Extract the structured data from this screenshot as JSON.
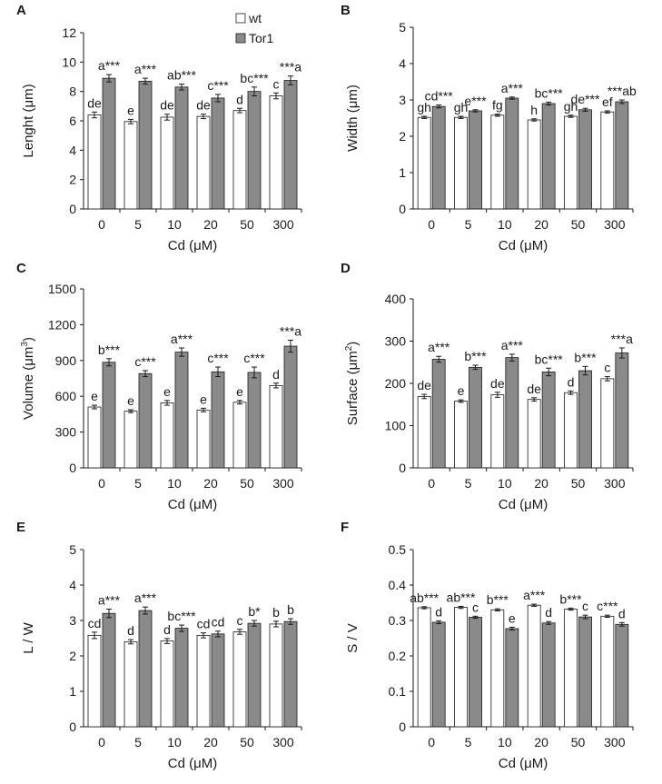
{
  "colors": {
    "wt": "#ffffff",
    "tor1": "#8a8a8a",
    "axis": "#1a1a1a"
  },
  "legend": {
    "wt": "wt",
    "tor1": "Tor1"
  },
  "chart_data": [
    {
      "panel": "A",
      "type": "bar",
      "xlabel": "Cd (μM)",
      "ylabel": "Lenght (μm)",
      "ylim": [
        0,
        12
      ],
      "yticks": [
        0,
        2,
        4,
        6,
        8,
        10,
        12
      ],
      "yticklabels": [
        "0",
        "2",
        "4",
        "6",
        "8",
        "10",
        "12"
      ],
      "categories": [
        "0",
        "5",
        "10",
        "20",
        "50",
        "300"
      ],
      "series": [
        {
          "name": "wt",
          "values": [
            6.4,
            5.95,
            6.25,
            6.3,
            6.7,
            7.7
          ],
          "errors": [
            0.2,
            0.15,
            0.2,
            0.15,
            0.15,
            0.2
          ],
          "labels": [
            "de",
            "e",
            "de",
            "de",
            "d",
            "c"
          ]
        },
        {
          "name": "Tor1",
          "values": [
            8.9,
            8.7,
            8.3,
            7.55,
            8.0,
            8.75
          ],
          "errors": [
            0.25,
            0.2,
            0.2,
            0.25,
            0.3,
            0.3
          ],
          "labels": [
            "a***",
            "a***",
            "ab***",
            "c***",
            "bc***",
            "***a"
          ]
        }
      ]
    },
    {
      "panel": "B",
      "type": "bar",
      "xlabel": "Cd (μM)",
      "ylabel": "Width (μm)",
      "ylim": [
        0,
        5
      ],
      "yticks": [
        0,
        1,
        2,
        3,
        4,
        5
      ],
      "yticklabels": [
        "0",
        "1",
        "2",
        "3",
        "4",
        "5"
      ],
      "categories": [
        "0",
        "5",
        "10",
        "20",
        "50",
        "300"
      ],
      "series": [
        {
          "name": "wt",
          "values": [
            2.52,
            2.52,
            2.58,
            2.45,
            2.55,
            2.67
          ],
          "errors": [
            0.03,
            0.03,
            0.03,
            0.03,
            0.03,
            0.03
          ],
          "labels": [
            "gh",
            "gh",
            "fg",
            "h",
            "gh",
            "ef"
          ]
        },
        {
          "name": "Tor1",
          "values": [
            2.82,
            2.7,
            3.05,
            2.9,
            2.73,
            2.95
          ],
          "errors": [
            0.04,
            0.03,
            0.03,
            0.04,
            0.04,
            0.05
          ],
          "labels": [
            "cd***",
            "e***",
            "a***",
            "bc***",
            "de***",
            "***ab"
          ]
        }
      ]
    },
    {
      "panel": "C",
      "type": "bar",
      "xlabel": "Cd (μM)",
      "ylabel": "Volume (μm³)",
      "ylim": [
        0,
        1500
      ],
      "yticks": [
        0,
        300,
        600,
        900,
        1200,
        1500
      ],
      "yticklabels": [
        "0",
        "300",
        "600",
        "900",
        "1200",
        "1500"
      ],
      "categories": [
        "0",
        "5",
        "10",
        "20",
        "50",
        "300"
      ],
      "series": [
        {
          "name": "wt",
          "values": [
            510,
            475,
            545,
            485,
            550,
            690
          ],
          "errors": [
            15,
            12,
            20,
            15,
            15,
            20
          ],
          "labels": [
            "e",
            "e",
            "e",
            "e",
            "e",
            "d"
          ]
        },
        {
          "name": "Tor1",
          "values": [
            885,
            790,
            970,
            805,
            800,
            1020
          ],
          "errors": [
            30,
            25,
            35,
            40,
            45,
            50
          ],
          "labels": [
            "b***",
            "c***",
            "a***",
            "c***",
            "c***",
            "***a"
          ]
        }
      ]
    },
    {
      "panel": "D",
      "type": "bar",
      "xlabel": "Cd (μM)",
      "ylabel": "Surface (μm²)",
      "ylim": [
        0,
        400
      ],
      "yticks": [
        0,
        100,
        200,
        300,
        400
      ],
      "yticklabels": [
        "0",
        "100",
        "200",
        "300",
        "400"
      ],
      "categories": [
        "0",
        "5",
        "10",
        "20",
        "50",
        "300"
      ],
      "series": [
        {
          "name": "wt",
          "values": [
            169,
            158,
            173,
            162,
            178,
            211
          ],
          "errors": [
            5,
            3,
            6,
            4,
            4,
            5
          ],
          "labels": [
            "de",
            "e",
            "de",
            "de",
            "d",
            "c"
          ]
        },
        {
          "name": "Tor1",
          "values": [
            257,
            238,
            261,
            227,
            230,
            272
          ],
          "errors": [
            7,
            5,
            8,
            9,
            10,
            12
          ],
          "labels": [
            "a***",
            "b***",
            "a***",
            "bc***",
            "b***",
            "***a"
          ]
        }
      ]
    },
    {
      "panel": "E",
      "type": "bar",
      "xlabel": "Cd (μM)",
      "ylabel": "L / W",
      "ylim": [
        0,
        5
      ],
      "yticks": [
        0,
        1,
        2,
        3,
        4,
        5
      ],
      "yticklabels": [
        "0",
        "1",
        "2",
        "3",
        "4",
        "5"
      ],
      "categories": [
        "0",
        "5",
        "10",
        "20",
        "50",
        "300"
      ],
      "series": [
        {
          "name": "wt",
          "values": [
            2.58,
            2.4,
            2.42,
            2.58,
            2.68,
            2.9
          ],
          "errors": [
            0.09,
            0.06,
            0.07,
            0.07,
            0.07,
            0.08
          ],
          "labels": [
            "cd",
            "d",
            "d",
            "cd",
            "c",
            "b"
          ]
        },
        {
          "name": "Tor1",
          "values": [
            3.2,
            3.28,
            2.78,
            2.62,
            2.92,
            2.97
          ],
          "errors": [
            0.12,
            0.1,
            0.09,
            0.08,
            0.08,
            0.08
          ],
          "labels": [
            "a***",
            "a***",
            "bc***",
            "cd",
            "b*",
            "b"
          ]
        }
      ]
    },
    {
      "panel": "F",
      "type": "bar",
      "xlabel": "Cd (μM)",
      "ylabel": "S / V",
      "ylim": [
        0,
        0.5
      ],
      "yticks": [
        0,
        0.1,
        0.2,
        0.3,
        0.4,
        0.5
      ],
      "yticklabels": [
        "0",
        "0.1",
        "0.2",
        "0.3",
        "0.4",
        "0.5"
      ],
      "categories": [
        "0",
        "5",
        "10",
        "20",
        "50",
        "300"
      ],
      "series": [
        {
          "name": "wt",
          "values": [
            0.336,
            0.337,
            0.33,
            0.343,
            0.332,
            0.312
          ],
          "errors": [
            0.003,
            0.003,
            0.003,
            0.003,
            0.003,
            0.003
          ],
          "labels": [
            "ab***",
            "ab***",
            "b***",
            "a***",
            "b***",
            "c***"
          ]
        },
        {
          "name": "Tor1",
          "values": [
            0.295,
            0.309,
            0.277,
            0.293,
            0.31,
            0.289
          ],
          "errors": [
            0.004,
            0.003,
            0.004,
            0.004,
            0.005,
            0.005
          ],
          "labels": [
            "d",
            "c",
            "e",
            "d",
            "c",
            "d"
          ]
        }
      ]
    }
  ]
}
